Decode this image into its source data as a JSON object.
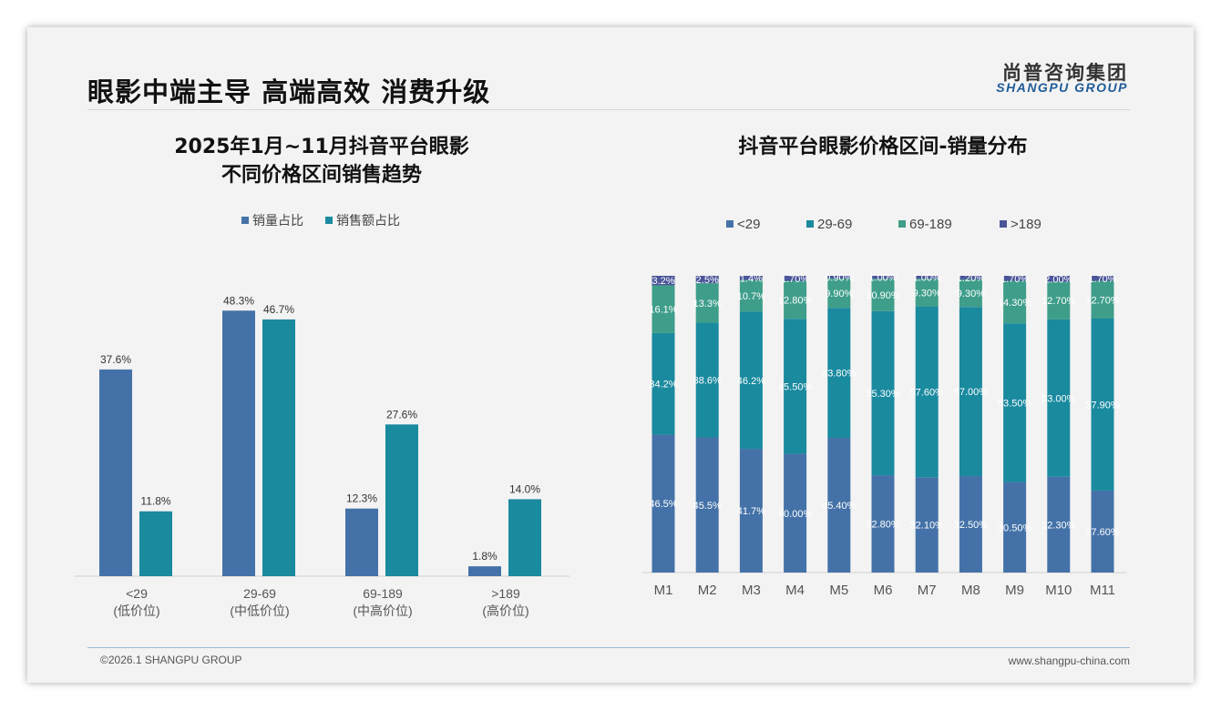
{
  "header": {
    "title": "眼影中端主导 高端高效 消费升级",
    "logo_cn": "尚普咨询集团",
    "logo_en": "SHANGPU GROUP"
  },
  "footer": {
    "copyright": "©2026.1 SHANGPU GROUP",
    "website": "www.shangpu-china.com"
  },
  "colors": {
    "blue": "#4472a8",
    "teal": "#1a8a9f",
    "green": "#3f9e8a",
    "purple": "#4a5599"
  },
  "chart_data": [
    {
      "type": "bar",
      "title": [
        "2025年1月~11月抖音平台眼影",
        "不同价格区间销售趋势"
      ],
      "categories": [
        "<29",
        "29-69",
        "69-189",
        ">189"
      ],
      "category_sublabels": [
        "(低价位)",
        "(中低价位)",
        "(中高价位)",
        "(高价位)"
      ],
      "legend": "top-center",
      "series": [
        {
          "name": "销量占比",
          "values": [
            37.6,
            48.3,
            12.3,
            1.8
          ],
          "labels": [
            "37.6%",
            "48.3%",
            "12.3%",
            "1.8%"
          ]
        },
        {
          "name": "销售额占比",
          "values": [
            11.8,
            46.7,
            27.6,
            14.0
          ],
          "labels": [
            "11.8%",
            "46.7%",
            "27.6%",
            "14.0%"
          ]
        }
      ],
      "ylim": [
        0,
        50
      ]
    },
    {
      "type": "bar",
      "stacked": true,
      "title": "抖音平台眼影价格区间-销量分布",
      "categories": [
        "M1",
        "M2",
        "M3",
        "M4",
        "M5",
        "M6",
        "M7",
        "M8",
        "M9",
        "M10",
        "M11"
      ],
      "legend": "top-center",
      "series": [
        {
          "name": "<29",
          "values": [
            46.5,
            45.5,
            41.7,
            40.0,
            45.4,
            32.8,
            32.1,
            32.5,
            30.5,
            32.3,
            27.6
          ],
          "labels": [
            "46.5%",
            "45.5%",
            "41.7%",
            "40.00%",
            "45.40%",
            "32.80%",
            "32.10%",
            "32.50%",
            "30.50%",
            "32.30%",
            "27.60%"
          ]
        },
        {
          "name": "29-69",
          "values": [
            34.2,
            38.6,
            46.2,
            45.5,
            43.8,
            55.3,
            57.6,
            57.0,
            53.5,
            53.0,
            57.9
          ],
          "labels": [
            "34.2%",
            "38.6%",
            "46.2%",
            "45.50%",
            "43.80%",
            "55.30%",
            "57.60%",
            "57.00%",
            "53.50%",
            "53.00%",
            "57.90%"
          ]
        },
        {
          "name": "69-189",
          "values": [
            16.1,
            13.3,
            10.7,
            12.8,
            9.9,
            10.9,
            9.3,
            9.3,
            14.3,
            12.7,
            12.7
          ],
          "labels": [
            "16.1%",
            "13.3%",
            "10.7%",
            "12.80%",
            "9.90%",
            "10.90%",
            "9.30%",
            "9.30%",
            "14.30%",
            "12.70%",
            "12.70%"
          ]
        },
        {
          "name": ">189",
          "values": [
            3.2,
            2.5,
            1.4,
            1.7,
            0.9,
            1.0,
            1.0,
            1.2,
            1.7,
            2.0,
            1.7
          ],
          "labels": [
            "3.2%",
            "2.5%",
            "1.4%",
            "1.70%",
            "0.90%",
            "1.00%",
            "1.00%",
            "1.20%",
            "1.70%",
            "2.00%",
            "1.70%"
          ]
        }
      ],
      "ylim": [
        0,
        100
      ]
    }
  ]
}
